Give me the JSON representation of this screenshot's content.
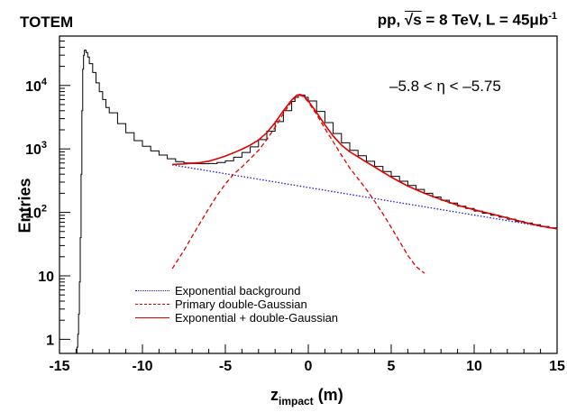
{
  "header": {
    "experiment": "TOTEM",
    "conditions_prefix": "pp, ",
    "sqrt": "√s",
    "conditions_energy": " = 8 TeV,  L = 45",
    "lumi_unit": "μb",
    "lumi_exp": "-1"
  },
  "region_label": "–5.8 < η < –5.75",
  "axes": {
    "ylabel": "Entries",
    "xlabel_main": "z",
    "xlabel_sub": "impact",
    "xlabel_unit": " (m)"
  },
  "legend": [
    {
      "label": "Exponential background",
      "color": "#1a1acc",
      "style": "dotted"
    },
    {
      "label": "Primary double-Gaussian",
      "color": "#e00000",
      "style": "dashed"
    },
    {
      "label": "Exponential + double-Gaussian",
      "color": "#e00000",
      "style": "solid"
    }
  ],
  "chart_data": {
    "type": "line",
    "xlim": [
      -15,
      15
    ],
    "ylim": [
      0.6,
      60000
    ],
    "yscale": "log",
    "x_ticks": [
      "-15",
      "-10",
      "-5",
      "0",
      "5",
      "10",
      "15"
    ],
    "x_tick_values": [
      -15,
      -10,
      -5,
      0,
      5,
      10,
      15
    ],
    "y_ticks": [
      {
        "value": 1,
        "base": "1",
        "exp": ""
      },
      {
        "value": 10,
        "base": "10",
        "exp": ""
      },
      {
        "value": 100,
        "base": "10",
        "exp": "2"
      },
      {
        "value": 1000,
        "base": "10",
        "exp": "3"
      },
      {
        "value": 10000,
        "base": "10",
        "exp": "4"
      }
    ],
    "grid": false,
    "legend_position": "bottom-center",
    "histogram": {
      "name": "Data",
      "points": [
        [
          -14.0,
          0.6
        ],
        [
          -13.95,
          0.75
        ],
        [
          -13.9,
          1.2
        ],
        [
          -13.85,
          2.5
        ],
        [
          -13.8,
          8
        ],
        [
          -13.75,
          40
        ],
        [
          -13.7,
          400
        ],
        [
          -13.65,
          4000
        ],
        [
          -13.6,
          18000
        ],
        [
          -13.55,
          30000
        ],
        [
          -13.5,
          36000
        ],
        [
          -13.4,
          33000
        ],
        [
          -13.3,
          28000
        ],
        [
          -13.2,
          22000
        ],
        [
          -13.0,
          16000
        ],
        [
          -12.8,
          11000
        ],
        [
          -12.6,
          8000
        ],
        [
          -12.4,
          6000
        ],
        [
          -12.2,
          4500
        ],
        [
          -12.0,
          3700
        ],
        [
          -11.5,
          2500
        ],
        [
          -11.0,
          1800
        ],
        [
          -10.5,
          1350
        ],
        [
          -10.0,
          1100
        ],
        [
          -9.5,
          930
        ],
        [
          -9.0,
          800
        ],
        [
          -8.5,
          700
        ],
        [
          -8.0,
          630
        ],
        [
          -7.5,
          600
        ],
        [
          -7.0,
          590
        ],
        [
          -6.5,
          585
        ],
        [
          -6.0,
          590
        ],
        [
          -5.5,
          610
        ],
        [
          -5.0,
          650
        ],
        [
          -4.5,
          740
        ],
        [
          -4.0,
          880
        ],
        [
          -3.5,
          1080
        ],
        [
          -3.0,
          1400
        ],
        [
          -2.5,
          1900
        ],
        [
          -2.0,
          2700
        ],
        [
          -1.5,
          4000
        ],
        [
          -1.0,
          5600
        ],
        [
          -0.8,
          6500
        ],
        [
          -0.6,
          7100
        ],
        [
          -0.4,
          7000
        ],
        [
          -0.2,
          6500
        ],
        [
          0.0,
          5700
        ],
        [
          0.5,
          3900
        ],
        [
          1.0,
          2600
        ],
        [
          1.5,
          1750
        ],
        [
          2.0,
          1250
        ],
        [
          2.5,
          950
        ],
        [
          3.0,
          780
        ],
        [
          3.5,
          640
        ],
        [
          4.0,
          530
        ],
        [
          4.5,
          440
        ],
        [
          5.0,
          370
        ],
        [
          5.5,
          310
        ],
        [
          6.0,
          265
        ],
        [
          6.5,
          230
        ],
        [
          7.0,
          200
        ],
        [
          7.5,
          175
        ],
        [
          8.0,
          155
        ],
        [
          8.5,
          140
        ],
        [
          9.0,
          125
        ],
        [
          9.5,
          115
        ],
        [
          10.0,
          105
        ],
        [
          10.5,
          97
        ],
        [
          11.0,
          90
        ],
        [
          11.5,
          84
        ],
        [
          12.0,
          78
        ],
        [
          12.5,
          72
        ],
        [
          13.0,
          68
        ],
        [
          13.5,
          64
        ],
        [
          14.0,
          60
        ],
        [
          14.5,
          57
        ],
        [
          15.0,
          55
        ]
      ]
    },
    "series": [
      {
        "style": "dotted",
        "color": "#1a1acc",
        "points": [
          [
            -8.2,
            560
          ],
          [
            15.0,
            55
          ]
        ]
      },
      {
        "style": "dashed",
        "color": "#e00000",
        "points": [
          [
            -8.2,
            13
          ],
          [
            -7.5,
            25
          ],
          [
            -7.0,
            42
          ],
          [
            -6.5,
            70
          ],
          [
            -6.0,
            115
          ],
          [
            -5.5,
            185
          ],
          [
            -5.0,
            280
          ],
          [
            -4.5,
            400
          ],
          [
            -4.0,
            520
          ],
          [
            -3.5,
            700
          ],
          [
            -3.0,
            950
          ],
          [
            -2.5,
            1400
          ],
          [
            -2.0,
            2200
          ],
          [
            -1.5,
            3600
          ],
          [
            -1.0,
            5600
          ],
          [
            -0.7,
            6800
          ],
          [
            -0.5,
            7000
          ],
          [
            -0.3,
            6700
          ],
          [
            0.0,
            5500
          ],
          [
            0.5,
            3500
          ],
          [
            1.0,
            2100
          ],
          [
            1.5,
            1300
          ],
          [
            2.0,
            800
          ],
          [
            2.5,
            500
          ],
          [
            3.0,
            340
          ],
          [
            3.5,
            230
          ],
          [
            4.0,
            150
          ],
          [
            4.5,
            95
          ],
          [
            5.0,
            58
          ],
          [
            5.5,
            35
          ],
          [
            6.0,
            21
          ],
          [
            6.5,
            14
          ],
          [
            7.0,
            11
          ]
        ]
      },
      {
        "style": "solid",
        "color": "#e00000",
        "points": [
          [
            -8.2,
            570
          ],
          [
            -7.5,
            580
          ],
          [
            -7.0,
            595
          ],
          [
            -6.5,
            610
          ],
          [
            -6.0,
            640
          ],
          [
            -5.5,
            700
          ],
          [
            -5.0,
            770
          ],
          [
            -4.5,
            870
          ],
          [
            -4.0,
            990
          ],
          [
            -3.5,
            1150
          ],
          [
            -3.0,
            1380
          ],
          [
            -2.5,
            1800
          ],
          [
            -2.0,
            2600
          ],
          [
            -1.5,
            4000
          ],
          [
            -1.0,
            5900
          ],
          [
            -0.7,
            7000
          ],
          [
            -0.5,
            7200
          ],
          [
            -0.3,
            6900
          ],
          [
            0.0,
            5700
          ],
          [
            0.5,
            3750
          ],
          [
            1.0,
            2400
          ],
          [
            1.5,
            1600
          ],
          [
            2.0,
            1150
          ],
          [
            2.5,
            900
          ],
          [
            3.0,
            750
          ],
          [
            3.5,
            620
          ],
          [
            4.0,
            520
          ],
          [
            4.5,
            430
          ],
          [
            5.0,
            360
          ],
          [
            5.5,
            305
          ],
          [
            6.0,
            260
          ],
          [
            7.0,
            200
          ],
          [
            8.0,
            160
          ],
          [
            9.0,
            130
          ],
          [
            10.0,
            110
          ],
          [
            11.0,
            95
          ],
          [
            12.0,
            82
          ],
          [
            13.0,
            70
          ],
          [
            14.0,
            61
          ],
          [
            15.0,
            55
          ]
        ]
      }
    ]
  }
}
